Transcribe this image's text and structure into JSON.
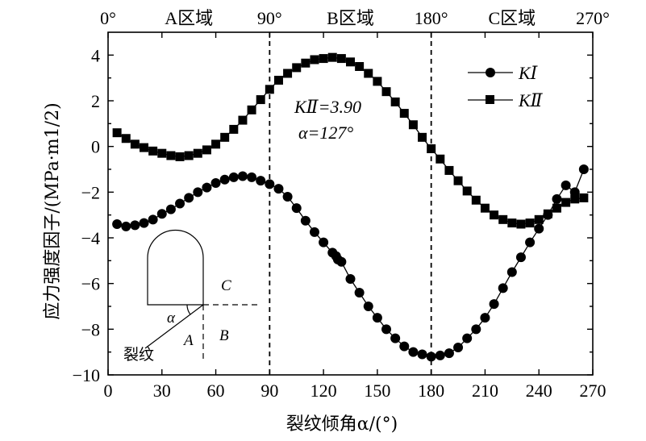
{
  "chart_data": {
    "type": "scatter",
    "xlabel": "裂纹倾角α/(°)",
    "ylabel": "应力强度因子/(MPa·m1/2)",
    "xlim": [
      0,
      270
    ],
    "ylim": [
      -10,
      5
    ],
    "x_ticks": [
      "0",
      "30",
      "60",
      "90",
      "120",
      "150",
      "180",
      "210",
      "240",
      "270"
    ],
    "y_ticks": [
      "4",
      "2",
      "0",
      "-2",
      "-4",
      "-6",
      "-8",
      "-10"
    ],
    "top_labels": [
      "0°",
      "A区域",
      "90°",
      "B区域",
      "180°",
      "C区域",
      "270°"
    ],
    "annotation": {
      "line1": "KⅡ=3.90",
      "line2": "α=127°"
    },
    "legend": [
      "KⅠ",
      "KⅡ"
    ],
    "inset": {
      "label_alpha": "α",
      "label_A": "A",
      "label_B": "B",
      "label_C": "C",
      "label_crack": "裂纹"
    },
    "series": [
      {
        "name": "KⅠ",
        "marker": "circle",
        "x": [
          5,
          10,
          15,
          20,
          25,
          30,
          35,
          40,
          45,
          50,
          55,
          60,
          65,
          70,
          75,
          80,
          85,
          90,
          95,
          100,
          105,
          110,
          115,
          120,
          125,
          127,
          128,
          130,
          135,
          140,
          145,
          150,
          155,
          160,
          165,
          170,
          175,
          180,
          185,
          190,
          195,
          200,
          205,
          210,
          215,
          220,
          225,
          230,
          235,
          240,
          245,
          250,
          255,
          260,
          265
        ],
        "y": [
          -3.4,
          -3.5,
          -3.45,
          -3.35,
          -3.2,
          -2.95,
          -2.75,
          -2.5,
          -2.25,
          -2.0,
          -1.8,
          -1.6,
          -1.45,
          -1.35,
          -1.3,
          -1.35,
          -1.5,
          -1.65,
          -1.85,
          -2.2,
          -2.7,
          -3.25,
          -3.75,
          -4.2,
          -4.65,
          -4.8,
          -4.95,
          -5.05,
          -5.8,
          -6.4,
          -7.0,
          -7.5,
          -8.0,
          -8.4,
          -8.75,
          -9.0,
          -9.1,
          -9.2,
          -9.15,
          -9.05,
          -8.8,
          -8.4,
          -8.0,
          -7.5,
          -6.9,
          -6.2,
          -5.5,
          -4.85,
          -4.2,
          -3.6,
          -3.0,
          -2.3,
          -1.7,
          -2.0,
          -1.0
        ]
      },
      {
        "name": "KⅡ",
        "marker": "square",
        "x": [
          5,
          10,
          15,
          20,
          25,
          30,
          35,
          40,
          45,
          50,
          55,
          60,
          65,
          70,
          75,
          80,
          85,
          90,
          95,
          100,
          105,
          110,
          115,
          120,
          125,
          130,
          135,
          140,
          145,
          150,
          155,
          160,
          165,
          170,
          175,
          180,
          185,
          190,
          195,
          200,
          205,
          210,
          215,
          220,
          225,
          230,
          235,
          240,
          245,
          250,
          255,
          260,
          265
        ],
        "y": [
          0.6,
          0.35,
          0.1,
          -0.05,
          -0.2,
          -0.3,
          -0.4,
          -0.45,
          -0.4,
          -0.3,
          -0.15,
          0.1,
          0.4,
          0.75,
          1.15,
          1.6,
          2.05,
          2.5,
          2.9,
          3.2,
          3.45,
          3.65,
          3.8,
          3.85,
          3.9,
          3.85,
          3.7,
          3.5,
          3.2,
          2.85,
          2.4,
          1.95,
          1.45,
          0.95,
          0.4,
          -0.1,
          -0.55,
          -1.05,
          -1.5,
          -1.95,
          -2.35,
          -2.7,
          -3.0,
          -3.2,
          -3.35,
          -3.4,
          -3.35,
          -3.2,
          -2.95,
          -2.7,
          -2.45,
          -2.3,
          -2.25
        ]
      }
    ]
  }
}
